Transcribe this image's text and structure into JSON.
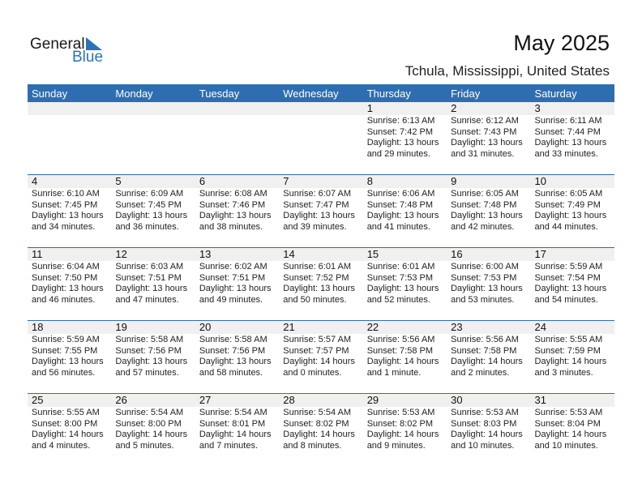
{
  "logo": {
    "line1": "General",
    "line2": "Blue"
  },
  "title": "May 2025",
  "location": "Tchula, Mississippi, United States",
  "weekdays": [
    "Sunday",
    "Monday",
    "Tuesday",
    "Wednesday",
    "Thursday",
    "Friday",
    "Saturday"
  ],
  "accent": "#2e6eb0",
  "weeks": [
    [
      null,
      null,
      null,
      null,
      {
        "day": "1",
        "sunrise": "Sunrise: 6:13 AM",
        "sunset": "Sunset: 7:42 PM",
        "daylight": "Daylight: 13 hours",
        "minutes": "and 29 minutes."
      },
      {
        "day": "2",
        "sunrise": "Sunrise: 6:12 AM",
        "sunset": "Sunset: 7:43 PM",
        "daylight": "Daylight: 13 hours",
        "minutes": "and 31 minutes."
      },
      {
        "day": "3",
        "sunrise": "Sunrise: 6:11 AM",
        "sunset": "Sunset: 7:44 PM",
        "daylight": "Daylight: 13 hours",
        "minutes": "and 33 minutes."
      }
    ],
    [
      {
        "day": "4",
        "sunrise": "Sunrise: 6:10 AM",
        "sunset": "Sunset: 7:45 PM",
        "daylight": "Daylight: 13 hours",
        "minutes": "and 34 minutes."
      },
      {
        "day": "5",
        "sunrise": "Sunrise: 6:09 AM",
        "sunset": "Sunset: 7:45 PM",
        "daylight": "Daylight: 13 hours",
        "minutes": "and 36 minutes."
      },
      {
        "day": "6",
        "sunrise": "Sunrise: 6:08 AM",
        "sunset": "Sunset: 7:46 PM",
        "daylight": "Daylight: 13 hours",
        "minutes": "and 38 minutes."
      },
      {
        "day": "7",
        "sunrise": "Sunrise: 6:07 AM",
        "sunset": "Sunset: 7:47 PM",
        "daylight": "Daylight: 13 hours",
        "minutes": "and 39 minutes."
      },
      {
        "day": "8",
        "sunrise": "Sunrise: 6:06 AM",
        "sunset": "Sunset: 7:48 PM",
        "daylight": "Daylight: 13 hours",
        "minutes": "and 41 minutes."
      },
      {
        "day": "9",
        "sunrise": "Sunrise: 6:05 AM",
        "sunset": "Sunset: 7:48 PM",
        "daylight": "Daylight: 13 hours",
        "minutes": "and 42 minutes."
      },
      {
        "day": "10",
        "sunrise": "Sunrise: 6:05 AM",
        "sunset": "Sunset: 7:49 PM",
        "daylight": "Daylight: 13 hours",
        "minutes": "and 44 minutes."
      }
    ],
    [
      {
        "day": "11",
        "sunrise": "Sunrise: 6:04 AM",
        "sunset": "Sunset: 7:50 PM",
        "daylight": "Daylight: 13 hours",
        "minutes": "and 46 minutes."
      },
      {
        "day": "12",
        "sunrise": "Sunrise: 6:03 AM",
        "sunset": "Sunset: 7:51 PM",
        "daylight": "Daylight: 13 hours",
        "minutes": "and 47 minutes."
      },
      {
        "day": "13",
        "sunrise": "Sunrise: 6:02 AM",
        "sunset": "Sunset: 7:51 PM",
        "daylight": "Daylight: 13 hours",
        "minutes": "and 49 minutes."
      },
      {
        "day": "14",
        "sunrise": "Sunrise: 6:01 AM",
        "sunset": "Sunset: 7:52 PM",
        "daylight": "Daylight: 13 hours",
        "minutes": "and 50 minutes."
      },
      {
        "day": "15",
        "sunrise": "Sunrise: 6:01 AM",
        "sunset": "Sunset: 7:53 PM",
        "daylight": "Daylight: 13 hours",
        "minutes": "and 52 minutes."
      },
      {
        "day": "16",
        "sunrise": "Sunrise: 6:00 AM",
        "sunset": "Sunset: 7:53 PM",
        "daylight": "Daylight: 13 hours",
        "minutes": "and 53 minutes."
      },
      {
        "day": "17",
        "sunrise": "Sunrise: 5:59 AM",
        "sunset": "Sunset: 7:54 PM",
        "daylight": "Daylight: 13 hours",
        "minutes": "and 54 minutes."
      }
    ],
    [
      {
        "day": "18",
        "sunrise": "Sunrise: 5:59 AM",
        "sunset": "Sunset: 7:55 PM",
        "daylight": "Daylight: 13 hours",
        "minutes": "and 56 minutes."
      },
      {
        "day": "19",
        "sunrise": "Sunrise: 5:58 AM",
        "sunset": "Sunset: 7:56 PM",
        "daylight": "Daylight: 13 hours",
        "minutes": "and 57 minutes."
      },
      {
        "day": "20",
        "sunrise": "Sunrise: 5:58 AM",
        "sunset": "Sunset: 7:56 PM",
        "daylight": "Daylight: 13 hours",
        "minutes": "and 58 minutes."
      },
      {
        "day": "21",
        "sunrise": "Sunrise: 5:57 AM",
        "sunset": "Sunset: 7:57 PM",
        "daylight": "Daylight: 14 hours",
        "minutes": "and 0 minutes."
      },
      {
        "day": "22",
        "sunrise": "Sunrise: 5:56 AM",
        "sunset": "Sunset: 7:58 PM",
        "daylight": "Daylight: 14 hours",
        "minutes": "and 1 minute."
      },
      {
        "day": "23",
        "sunrise": "Sunrise: 5:56 AM",
        "sunset": "Sunset: 7:58 PM",
        "daylight": "Daylight: 14 hours",
        "minutes": "and 2 minutes."
      },
      {
        "day": "24",
        "sunrise": "Sunrise: 5:55 AM",
        "sunset": "Sunset: 7:59 PM",
        "daylight": "Daylight: 14 hours",
        "minutes": "and 3 minutes."
      }
    ],
    [
      {
        "day": "25",
        "sunrise": "Sunrise: 5:55 AM",
        "sunset": "Sunset: 8:00 PM",
        "daylight": "Daylight: 14 hours",
        "minutes": "and 4 minutes."
      },
      {
        "day": "26",
        "sunrise": "Sunrise: 5:54 AM",
        "sunset": "Sunset: 8:00 PM",
        "daylight": "Daylight: 14 hours",
        "minutes": "and 5 minutes."
      },
      {
        "day": "27",
        "sunrise": "Sunrise: 5:54 AM",
        "sunset": "Sunset: 8:01 PM",
        "daylight": "Daylight: 14 hours",
        "minutes": "and 7 minutes."
      },
      {
        "day": "28",
        "sunrise": "Sunrise: 5:54 AM",
        "sunset": "Sunset: 8:02 PM",
        "daylight": "Daylight: 14 hours",
        "minutes": "and 8 minutes."
      },
      {
        "day": "29",
        "sunrise": "Sunrise: 5:53 AM",
        "sunset": "Sunset: 8:02 PM",
        "daylight": "Daylight: 14 hours",
        "minutes": "and 9 minutes."
      },
      {
        "day": "30",
        "sunrise": "Sunrise: 5:53 AM",
        "sunset": "Sunset: 8:03 PM",
        "daylight": "Daylight: 14 hours",
        "minutes": "and 10 minutes."
      },
      {
        "day": "31",
        "sunrise": "Sunrise: 5:53 AM",
        "sunset": "Sunset: 8:04 PM",
        "daylight": "Daylight: 14 hours",
        "minutes": "and 10 minutes."
      }
    ]
  ]
}
